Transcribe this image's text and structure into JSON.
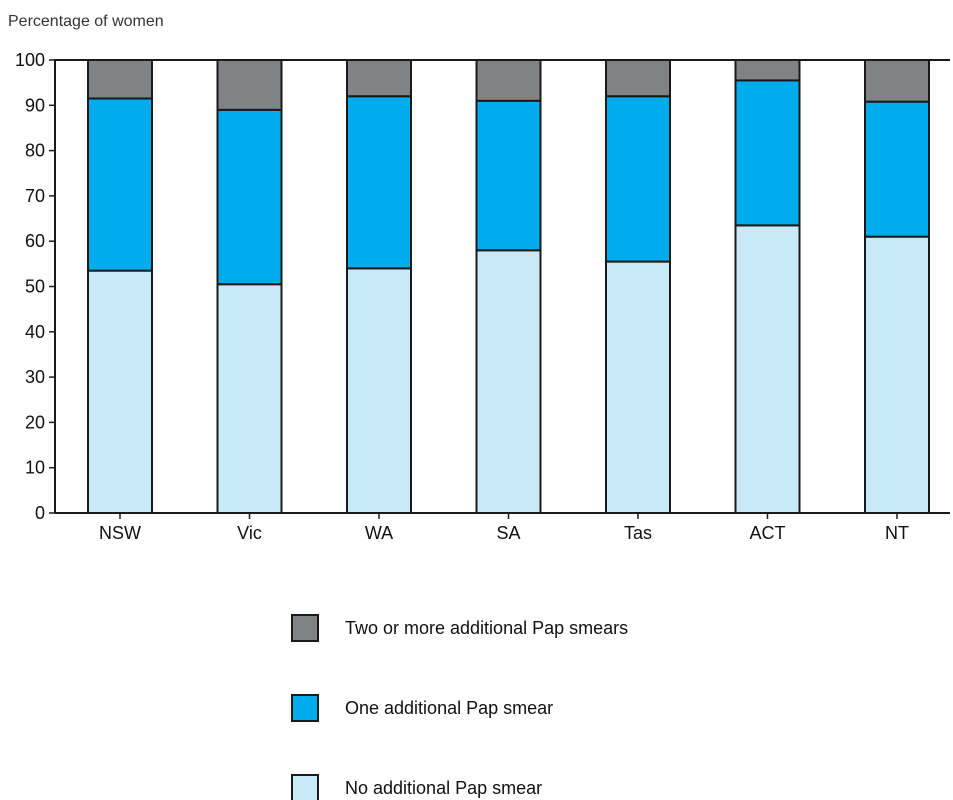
{
  "chart_data": {
    "type": "bar",
    "stacked": true,
    "ylabel": "Percentage of women",
    "xlabel": "",
    "ylim": [
      0,
      100
    ],
    "yticks": [
      0,
      10,
      20,
      30,
      40,
      50,
      60,
      70,
      80,
      90,
      100
    ],
    "categories": [
      "NSW",
      "Vic",
      "WA",
      "SA",
      "Tas",
      "ACT",
      "NT"
    ],
    "series": [
      {
        "name": "No additional Pap smear",
        "color": "#c8e9f8",
        "values": [
          53.5,
          50.5,
          54.0,
          58.0,
          55.5,
          63.5,
          61.0
        ]
      },
      {
        "name": "One additional Pap smear",
        "color": "#00acec",
        "values": [
          38.0,
          38.5,
          38.0,
          33.0,
          36.5,
          32.0,
          29.8
        ]
      },
      {
        "name": "Two or more additional Pap smears",
        "color": "#808285",
        "values": [
          8.5,
          11.0,
          8.0,
          9.0,
          8.0,
          4.5,
          9.2
        ]
      }
    ],
    "legend_order": [
      "Two or more additional Pap smears",
      "One additional Pap smear",
      "No additional Pap smear"
    ],
    "legend_position": "bottom-center",
    "grid": false
  }
}
